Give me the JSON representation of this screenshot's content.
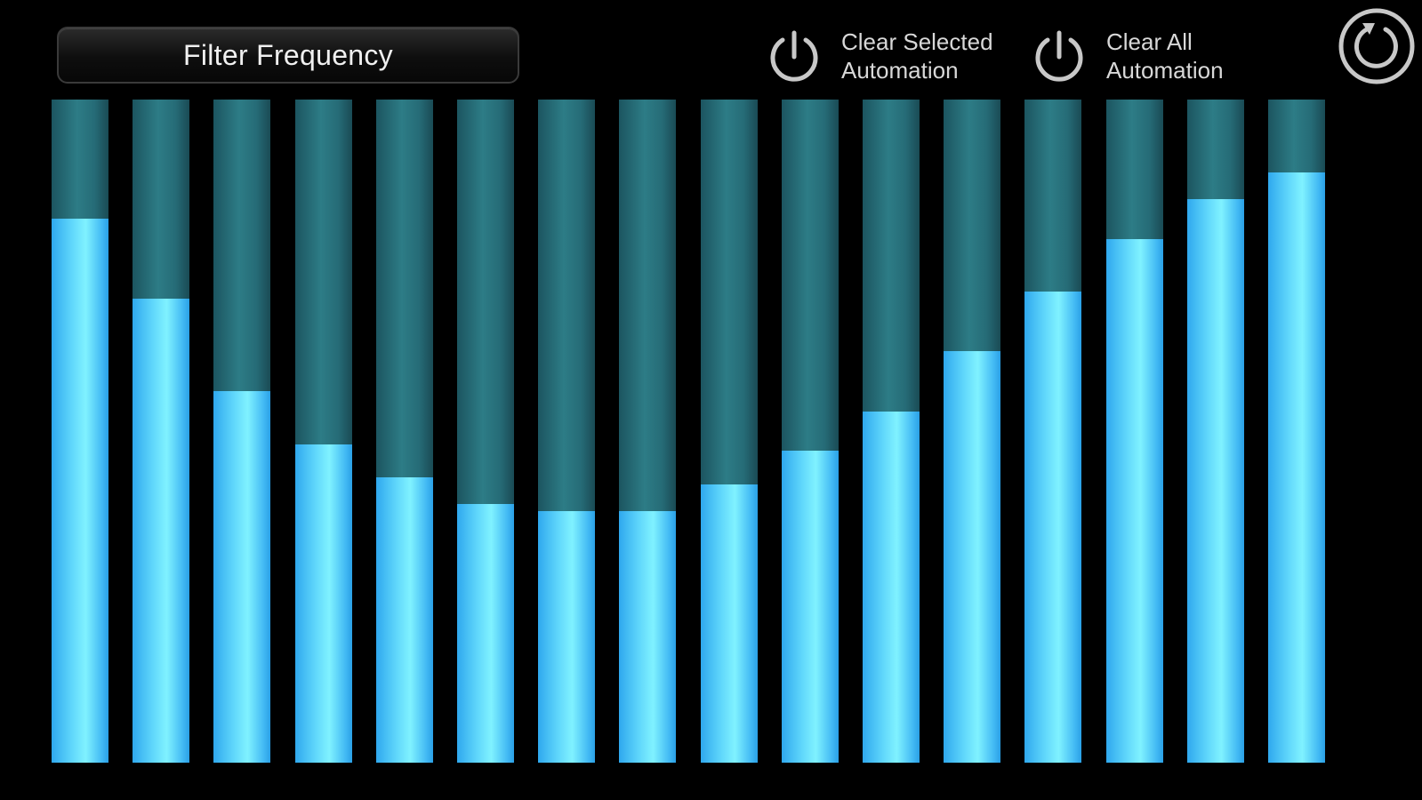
{
  "parameter": {
    "label": "Filter Frequency"
  },
  "actions": {
    "clear_selected": {
      "line1": "Clear Selected",
      "line2": "Automation",
      "icon": "power-icon"
    },
    "clear_all": {
      "line1": "Clear All",
      "line2": "Automation",
      "icon": "power-icon"
    },
    "reset": {
      "icon": "reset-icon"
    }
  },
  "colors": {
    "background": "#000000",
    "bar_track": "#2d7c86",
    "bar_fill": "#5fd6fb",
    "icon_stroke": "#c8c8c8"
  },
  "steps": {
    "count": 16,
    "levels": [
      0.82,
      0.7,
      0.56,
      0.48,
      0.43,
      0.39,
      0.38,
      0.38,
      0.42,
      0.47,
      0.53,
      0.62,
      0.71,
      0.79,
      0.85,
      0.89
    ]
  }
}
